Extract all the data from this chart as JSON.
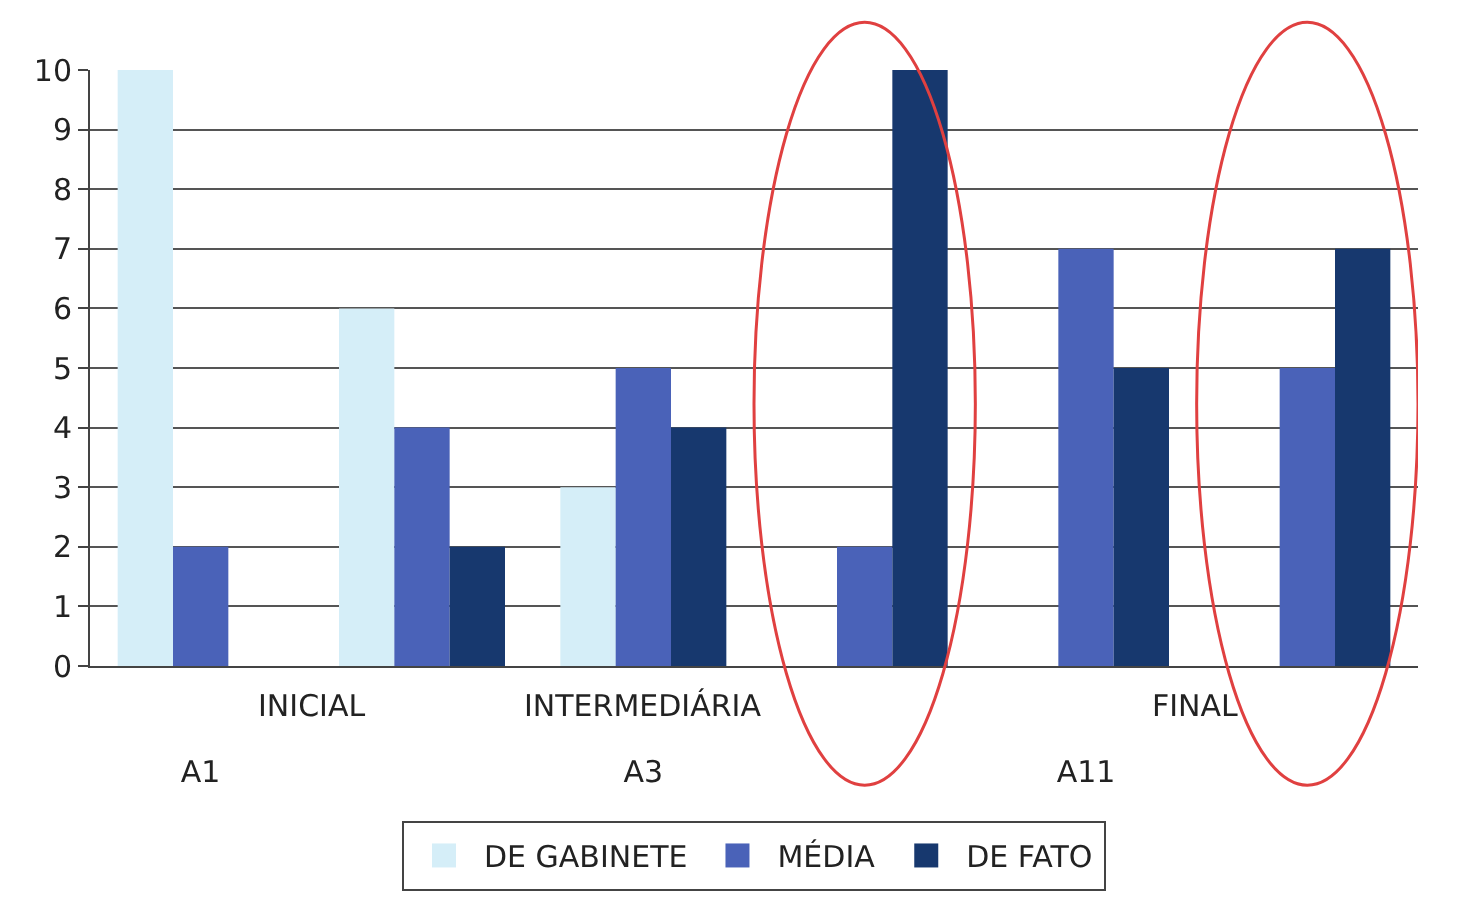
{
  "chart_data": {
    "type": "bar",
    "categories": [
      "A1",
      null,
      "A3",
      null,
      "A11",
      null
    ],
    "annotations": [
      "INICIAL",
      "INTERMEDIÁRIA",
      "FINAL"
    ],
    "series": [
      {
        "name": "DE GABINETE",
        "color": "#d5eef8",
        "values": [
          10,
          6,
          3,
          0,
          0,
          0
        ]
      },
      {
        "name": "MÉDIA",
        "color": "#4a62b8",
        "values": [
          2,
          4,
          5,
          2,
          7,
          5
        ]
      },
      {
        "name": "DE FATO",
        "color": "#17386e",
        "values": [
          0,
          2,
          4,
          10,
          5,
          7
        ]
      }
    ],
    "ylim": [
      0,
      10
    ],
    "yticks": [
      0,
      1,
      2,
      3,
      4,
      5,
      6,
      7,
      8,
      9,
      10
    ],
    "grid": "y",
    "legend": "bottom"
  }
}
